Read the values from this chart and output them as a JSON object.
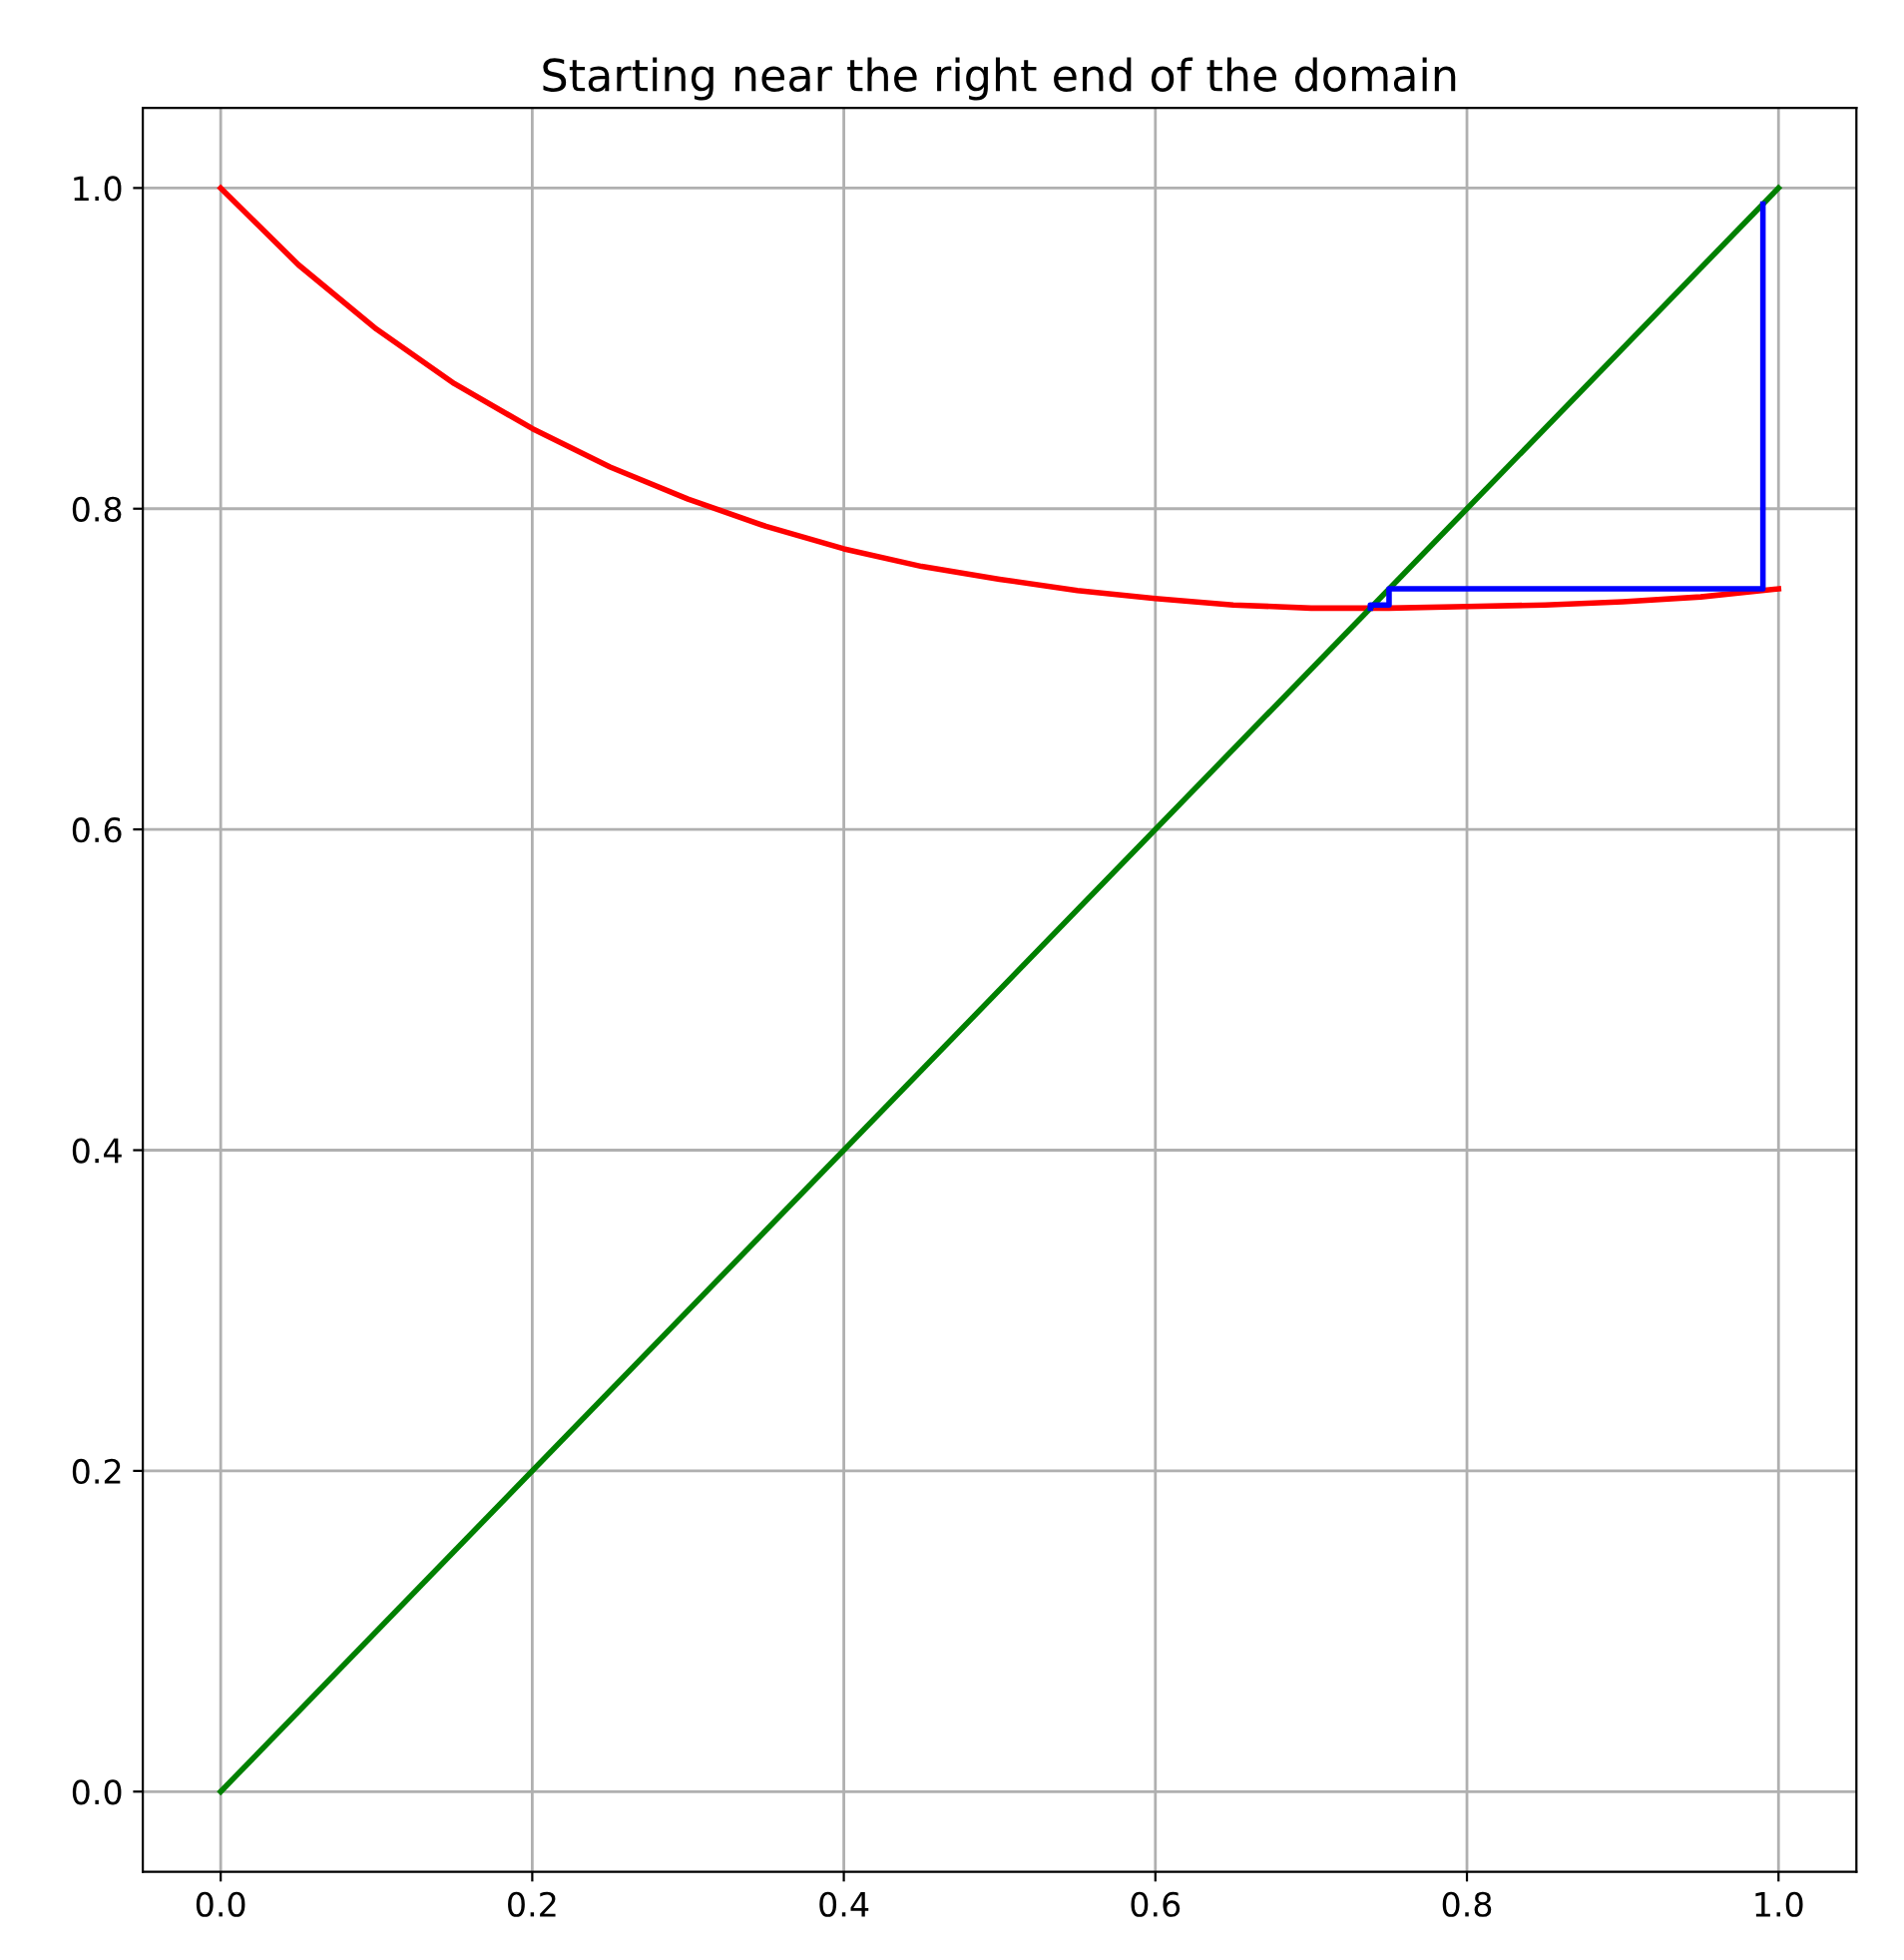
{
  "chart_data": {
    "type": "line",
    "title": "Starting near the right end of the domain",
    "series": [
      {
        "color": "#ff0000",
        "x": [
          0,
          0.05,
          0.1,
          0.15,
          0.2,
          0.25,
          0.3,
          0.35,
          0.4,
          0.45,
          0.5,
          0.55,
          0.6,
          0.65,
          0.7,
          0.75,
          0.8,
          0.85,
          0.9,
          0.95,
          1.0
        ],
        "values": [
          1.0,
          0.952,
          0.912,
          0.878,
          0.85,
          0.826,
          0.806,
          0.789,
          0.775,
          0.764,
          0.756,
          0.749,
          0.744,
          0.74,
          0.738,
          0.738,
          0.739,
          0.74,
          0.742,
          0.745,
          0.75
        ]
      },
      {
        "color": "#008000",
        "x": [
          0,
          1
        ],
        "values": [
          0,
          1
        ]
      },
      {
        "color": "#0000ff",
        "x": [
          0.99,
          0.99,
          0.75,
          0.75,
          0.738,
          0.738
        ],
        "values": [
          0.99,
          0.75,
          0.75,
          0.74,
          0.74,
          0.738
        ]
      }
    ],
    "xlim": [
      -0.05,
      1.05
    ],
    "ylim": [
      -0.05,
      1.05
    ],
    "xticks": [
      {
        "value": 0,
        "label": "0.0"
      },
      0.2,
      0.4,
      0.6,
      0.8,
      {
        "value": 1,
        "label": "1.0"
      }
    ],
    "yticks": [
      {
        "value": 0,
        "label": "0.0"
      },
      0.2,
      0.4,
      0.6,
      0.8,
      {
        "value": 1,
        "label": "1.0"
      }
    ],
    "grid": true
  }
}
